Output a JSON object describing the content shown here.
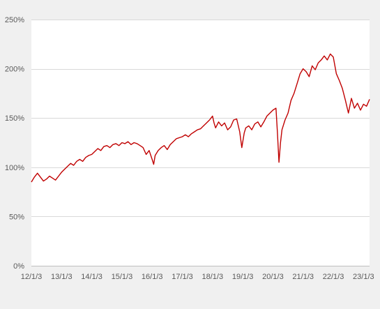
{
  "chart_data": {
    "type": "line",
    "title": "",
    "xlabel": "",
    "ylabel": "",
    "x_tick_labels": [
      "12/1/3",
      "13/1/3",
      "14/1/3",
      "15/1/3",
      "16/1/3",
      "17/1/3",
      "18/1/3",
      "19/1/3",
      "20/1/3",
      "21/1/3",
      "22/1/3",
      "23/1/3"
    ],
    "x_tick_positions": [
      2012.0,
      2013.0,
      2014.0,
      2015.0,
      2016.0,
      2017.0,
      2018.0,
      2019.0,
      2020.0,
      2021.0,
      2022.0,
      2023.0
    ],
    "xlim": [
      2012.0,
      2023.2
    ],
    "y_tick_labels": [
      "0%",
      "50%",
      "100%",
      "150%",
      "200%",
      "250%"
    ],
    "y_tick_values": [
      0,
      50,
      100,
      150,
      200,
      250
    ],
    "ylim": [
      0,
      250
    ],
    "grid": "horizontal",
    "legend": "none",
    "series_color": "#c00000",
    "series": [
      {
        "x": [
          2012.0,
          2012.1,
          2012.2,
          2012.3,
          2012.4,
          2012.5,
          2012.6,
          2012.7,
          2012.8,
          2012.9,
          2013.0,
          2013.1,
          2013.2,
          2013.3,
          2013.4,
          2013.5,
          2013.6,
          2013.7,
          2013.8,
          2013.9,
          2014.0,
          2014.1,
          2014.2,
          2014.3,
          2014.4,
          2014.5,
          2014.6,
          2014.7,
          2014.8,
          2014.9,
          2015.0,
          2015.1,
          2015.2,
          2015.3,
          2015.4,
          2015.5,
          2015.6,
          2015.7,
          2015.8,
          2015.9,
          2016.0,
          2016.05,
          2016.1,
          2016.2,
          2016.3,
          2016.4,
          2016.5,
          2016.6,
          2016.7,
          2016.8,
          2016.9,
          2017.0,
          2017.1,
          2017.2,
          2017.3,
          2017.4,
          2017.5,
          2017.6,
          2017.7,
          2017.8,
          2017.9,
          2018.0,
          2018.05,
          2018.1,
          2018.2,
          2018.3,
          2018.4,
          2018.5,
          2018.6,
          2018.7,
          2018.8,
          2018.9,
          2018.97,
          2019.05,
          2019.1,
          2019.2,
          2019.3,
          2019.4,
          2019.5,
          2019.6,
          2019.7,
          2019.8,
          2019.9,
          2020.0,
          2020.1,
          2020.15,
          2020.2,
          2020.25,
          2020.3,
          2020.4,
          2020.5,
          2020.6,
          2020.7,
          2020.8,
          2020.9,
          2021.0,
          2021.1,
          2021.2,
          2021.3,
          2021.4,
          2021.5,
          2021.6,
          2021.7,
          2021.8,
          2021.9,
          2022.0,
          2022.1,
          2022.2,
          2022.3,
          2022.4,
          2022.5,
          2022.6,
          2022.7,
          2022.8,
          2022.9,
          2023.0,
          2023.1,
          2023.2
        ],
        "values": [
          85,
          90,
          94,
          90,
          86,
          88,
          91,
          89,
          87,
          91,
          95,
          98,
          101,
          104,
          102,
          106,
          108,
          106,
          110,
          112,
          113,
          116,
          119,
          117,
          121,
          122,
          120,
          123,
          124,
          122,
          125,
          124,
          126,
          123,
          125,
          124,
          122,
          120,
          113,
          117,
          108,
          103,
          112,
          117,
          120,
          122,
          118,
          123,
          126,
          129,
          130,
          131,
          133,
          131,
          134,
          136,
          138,
          139,
          142,
          145,
          148,
          152,
          145,
          140,
          146,
          142,
          145,
          138,
          141,
          148,
          149,
          136,
          120,
          135,
          140,
          142,
          138,
          144,
          146,
          141,
          146,
          152,
          155,
          158,
          160,
          135,
          105,
          125,
          138,
          148,
          155,
          168,
          175,
          185,
          195,
          200,
          197,
          192,
          203,
          199,
          206,
          209,
          213,
          209,
          215,
          212,
          195,
          188,
          180,
          168,
          155,
          170,
          160,
          165,
          158,
          164,
          162,
          169
        ]
      }
    ]
  }
}
